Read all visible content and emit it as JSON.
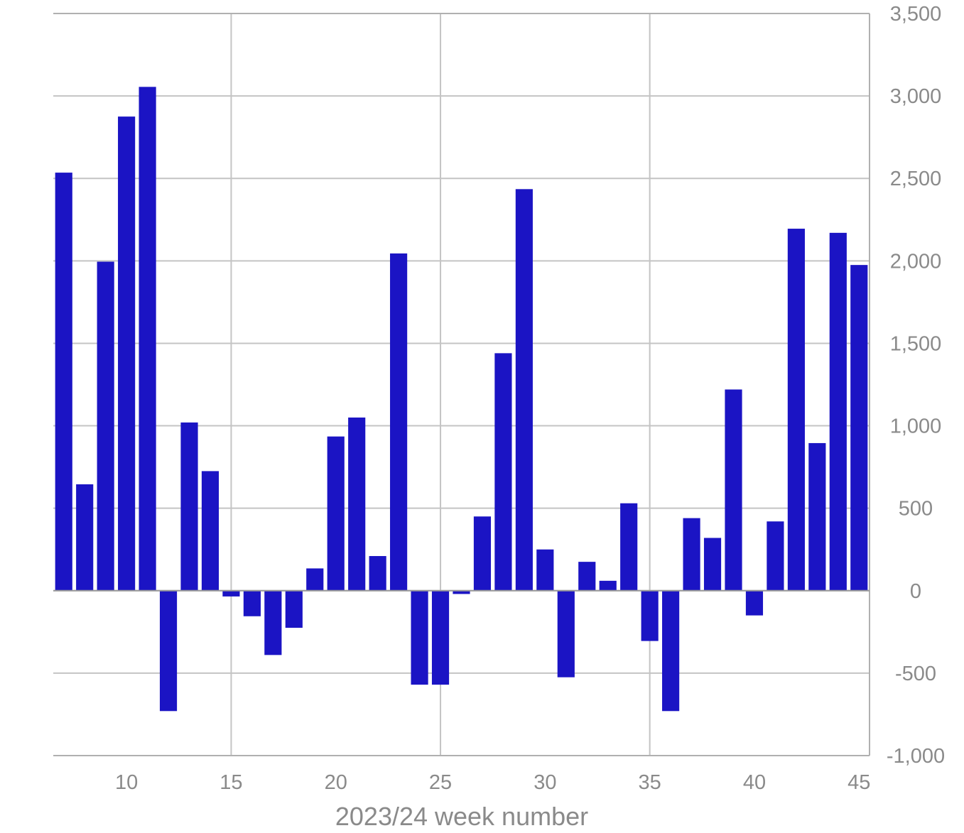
{
  "chart_data": {
    "type": "bar",
    "xlabel": "2023/24 week number",
    "ylabel": "",
    "x": [
      7,
      8,
      9,
      10,
      11,
      12,
      13,
      14,
      15,
      16,
      17,
      18,
      19,
      20,
      21,
      22,
      23,
      24,
      25,
      26,
      27,
      28,
      29,
      30,
      31,
      32,
      33,
      34,
      35,
      36,
      37,
      38,
      39,
      40,
      41,
      42,
      43,
      44,
      45
    ],
    "values": [
      2535,
      645,
      1995,
      2875,
      3055,
      -730,
      1020,
      725,
      -35,
      -155,
      -390,
      -225,
      135,
      935,
      1050,
      210,
      2045,
      -570,
      -570,
      -20,
      450,
      1440,
      2435,
      250,
      -525,
      175,
      60,
      530,
      -305,
      -730,
      440,
      320,
      1220,
      -150,
      420,
      2195,
      895,
      2170,
      1975
    ],
    "xlim": [
      6.5,
      45.5
    ],
    "ylim": [
      -1000,
      3500
    ],
    "xticks": [
      10,
      15,
      20,
      25,
      30,
      35,
      40,
      45
    ],
    "xtick_labels": [
      "10",
      "15",
      "20",
      "25",
      "30",
      "35",
      "40",
      "45"
    ],
    "yticks": [
      -1000,
      -500,
      0,
      500,
      1000,
      1500,
      2000,
      2500,
      3000,
      3500
    ],
    "ytick_labels": [
      "-1,000",
      "-500",
      "0",
      "500",
      "1,000",
      "1,500",
      "2,000",
      "2,500",
      "3,000",
      "3,500"
    ],
    "y_axis_side": "right",
    "grid": true,
    "bar_color": "#1b14c4",
    "grid_color": "#c4c4c4",
    "text_color": "#8a8a8a"
  }
}
